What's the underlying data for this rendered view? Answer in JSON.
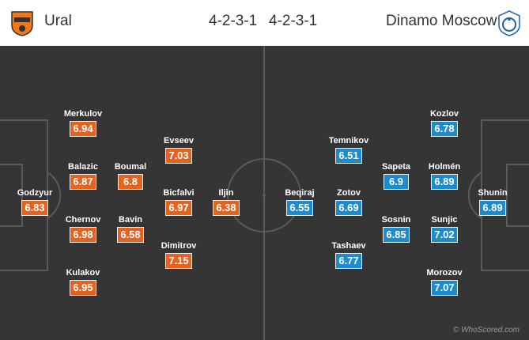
{
  "home": {
    "name": "Ural",
    "formation": "4-2-3-1",
    "color": "#e5631e",
    "logo_icon": "ural-crest-icon",
    "players": [
      {
        "name": "Godzyur",
        "rating": "6.83"
      },
      {
        "name": "Merkulov",
        "rating": "6.94"
      },
      {
        "name": "Balazic",
        "rating": "6.87"
      },
      {
        "name": "Chernov",
        "rating": "6.98"
      },
      {
        "name": "Kulakov",
        "rating": "6.95"
      },
      {
        "name": "Boumal",
        "rating": "6.8"
      },
      {
        "name": "Bavin",
        "rating": "6.58"
      },
      {
        "name": "Evseev",
        "rating": "7.03"
      },
      {
        "name": "Bicfalvi",
        "rating": "6.97"
      },
      {
        "name": "Dimitrov",
        "rating": "7.15"
      },
      {
        "name": "Iljin",
        "rating": "6.38"
      }
    ]
  },
  "away": {
    "name": "Dinamo Moscow",
    "formation": "4-2-3-1",
    "color": "#1d8ccd",
    "logo_icon": "dinamo-crest-icon",
    "players": [
      {
        "name": "Shunin",
        "rating": "6.89"
      },
      {
        "name": "Kozlov",
        "rating": "6.78"
      },
      {
        "name": "Holmén",
        "rating": "6.89"
      },
      {
        "name": "Sunjic",
        "rating": "7.02"
      },
      {
        "name": "Morozov",
        "rating": "7.07"
      },
      {
        "name": "Sapeta",
        "rating": "6.9"
      },
      {
        "name": "Sosnin",
        "rating": "6.85"
      },
      {
        "name": "Temnikov",
        "rating": "6.51"
      },
      {
        "name": "Zotov",
        "rating": "6.69"
      },
      {
        "name": "Tashaev",
        "rating": "6.77"
      },
      {
        "name": "Beqiraj",
        "rating": "6.55"
      }
    ]
  },
  "watermark": "© WhoScored.com"
}
